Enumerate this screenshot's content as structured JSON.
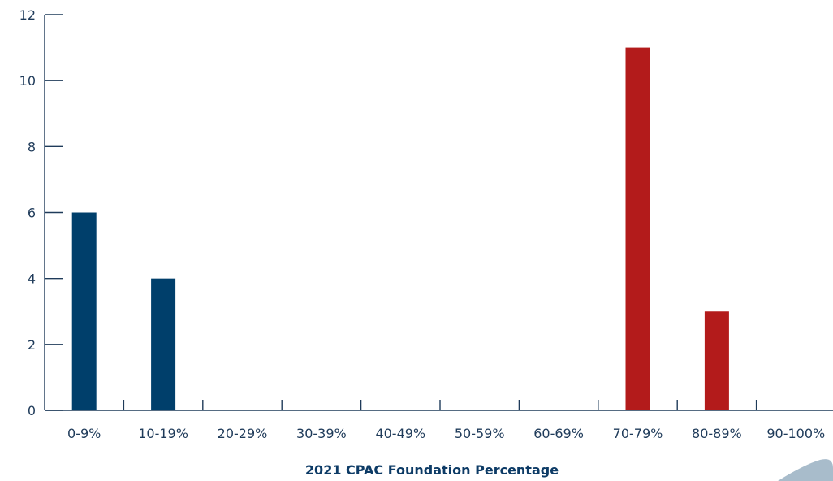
{
  "chart_data": {
    "type": "bar",
    "title": "",
    "xlabel": "2021 CPAC Foundation Percentage",
    "ylabel": "",
    "categories": [
      "0-9%",
      "10-19%",
      "20-29%",
      "30-39%",
      "40-49%",
      "50-59%",
      "60-69%",
      "70-79%",
      "80-89%",
      "90-100%"
    ],
    "values": [
      6,
      4,
      0,
      0,
      0,
      0,
      0,
      11,
      3,
      0
    ],
    "bar_colors": [
      "#003f6b",
      "#003f6b",
      "#003f6b",
      "#003f6b",
      "#003f6b",
      "#003f6b",
      "#003f6b",
      "#b31b1b",
      "#b31b1b",
      "#b31b1b"
    ],
    "ylim": [
      0,
      12
    ],
    "yticks": [
      0,
      2,
      4,
      6,
      8,
      10,
      12
    ],
    "grid": false,
    "legend": "none"
  }
}
